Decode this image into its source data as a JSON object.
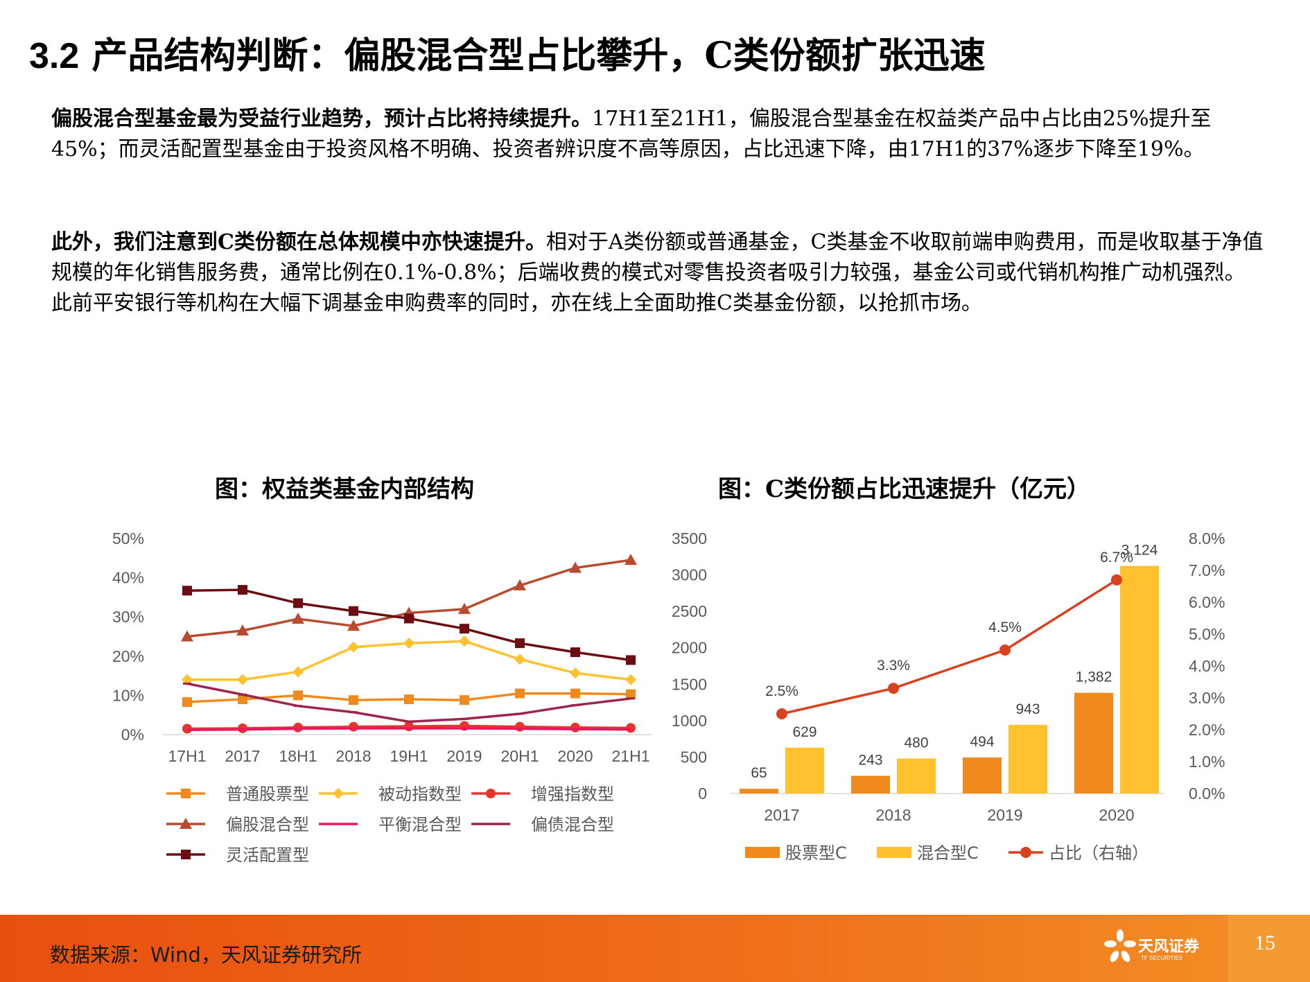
{
  "title": {
    "num": "3.2",
    "text": "产品结构判断：偏股混合型占比攀升，C类份额扩张迅速"
  },
  "para1": {
    "bold": "偏股混合型基金最为受益行业趋势，预计占比将持续提升。",
    "rest": "17H1至21H1，偏股混合型基金在权益类产品中占比由25%提升至45%；而灵活配置型基金由于投资风格不明确、投资者辨识度不高等原因，占比迅速下降，由17H1的37%逐步下降至19%。"
  },
  "para2": {
    "bold": "此外，我们注意到C类份额在总体规模中亦快速提升。",
    "rest": "相对于A类份额或普通基金，C类基金不收取前端申购费用，而是收取基于净值规模的年化销售服务费，通常比例在0.1%-0.8%；后端收费的模式对零售投资者吸引力较强，基金公司或代销机构推广动机强烈。此前平安银行等机构在大幅下调基金申购费率的同时，亦在线上全面助推C类基金份额，以抢抓市场。"
  },
  "chart_data": [
    {
      "type": "line",
      "title": "图：权益类基金内部结构",
      "categories": [
        "17H1",
        "2017",
        "18H1",
        "2018",
        "19H1",
        "2019",
        "20H1",
        "2020",
        "21H1"
      ],
      "y_ticks": [
        "0%",
        "10%",
        "20%",
        "30%",
        "40%",
        "50%"
      ],
      "ylim": [
        0,
        0.5
      ],
      "grid": false,
      "legend": "bottom",
      "series": [
        {
          "name": "普通股票型",
          "color": "#F18A1D",
          "marker": "square",
          "values": [
            0.083,
            0.09,
            0.1,
            0.088,
            0.09,
            0.088,
            0.105,
            0.105,
            0.103
          ]
        },
        {
          "name": "被动指数型",
          "color": "#FFC22E",
          "marker": "diamond",
          "values": [
            0.14,
            0.14,
            0.16,
            0.223,
            0.233,
            0.238,
            0.192,
            0.157,
            0.14
          ]
        },
        {
          "name": "增强指数型",
          "color": "#E8352C",
          "marker": "circle",
          "values": [
            0.015,
            0.016,
            0.018,
            0.02,
            0.021,
            0.022,
            0.02,
            0.018,
            0.017
          ]
        },
        {
          "name": "偏股混合型",
          "color": "#B84A2E",
          "marker": "triangle",
          "values": [
            0.25,
            0.265,
            0.295,
            0.277,
            0.31,
            0.32,
            0.38,
            0.425,
            0.445
          ]
        },
        {
          "name": "平衡混合型",
          "color": "#E8185E",
          "marker": "none",
          "values": [
            0.012,
            0.013,
            0.015,
            0.016,
            0.016,
            0.016,
            0.015,
            0.014,
            0.013
          ]
        },
        {
          "name": "偏债混合型",
          "color": "#9C2548",
          "marker": "dash",
          "values": [
            0.13,
            0.102,
            0.073,
            0.057,
            0.033,
            0.04,
            0.053,
            0.075,
            0.092
          ]
        },
        {
          "name": "灵活配置型",
          "color": "#6B0D12",
          "marker": "square",
          "values": [
            0.367,
            0.369,
            0.335,
            0.315,
            0.296,
            0.27,
            0.233,
            0.21,
            0.19
          ]
        }
      ]
    },
    {
      "type": "bar",
      "title": "图：C类份额占比迅速提升（亿元）",
      "categories": [
        "2017",
        "2018",
        "2019",
        "2020"
      ],
      "y_ticks_left": [
        "0",
        "500",
        "1000",
        "1500",
        "2000",
        "2500",
        "3000",
        "3500"
      ],
      "ylim_left": [
        0,
        3500
      ],
      "y_ticks_right": [
        "0.0%",
        "1.0%",
        "2.0%",
        "3.0%",
        "4.0%",
        "5.0%",
        "6.0%",
        "7.0%",
        "8.0%"
      ],
      "ylim_right": [
        0,
        0.08
      ],
      "grid": false,
      "legend": "bottom",
      "series": [
        {
          "name": "股票型C",
          "color": "#F18A1D",
          "values": [
            65,
            243,
            494,
            1382
          ],
          "labels": [
            "65",
            "243",
            "494",
            "1,382"
          ]
        },
        {
          "name": "混合型C",
          "color": "#FFC22E",
          "values": [
            629,
            480,
            943,
            3124
          ],
          "labels": [
            "629",
            "480",
            "943",
            "3,124"
          ]
        },
        {
          "name": "占比（右轴）",
          "color": "#D9401E",
          "axis": "right",
          "values": [
            0.025,
            0.033,
            0.045,
            0.067
          ],
          "labels": [
            "2.5%",
            "3.3%",
            "4.5%",
            "6.7%"
          ]
        }
      ]
    }
  ],
  "footer": {
    "source": "数据来源：Wind，天风证券研究所",
    "logo_text": "天风证券",
    "logo_sub": "TF SECURITIES",
    "page": "15"
  }
}
